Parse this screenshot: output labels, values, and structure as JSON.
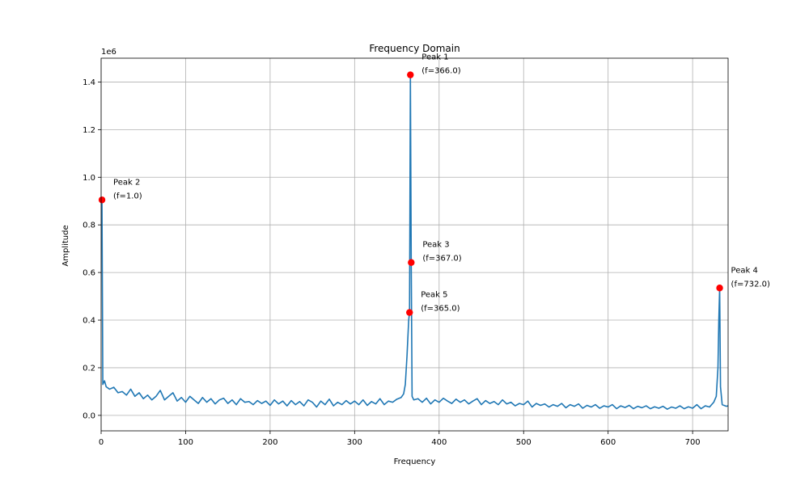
{
  "chart_data": {
    "type": "line",
    "title": "Frequency Domain",
    "xlabel": "Frequency",
    "ylabel": "Amplitude",
    "y_scale_label": "1e6",
    "xlim": [
      0,
      742
    ],
    "ylim": [
      -65000,
      1500000
    ],
    "x_ticks": [
      0,
      100,
      200,
      300,
      400,
      500,
      600,
      700
    ],
    "x_tick_labels": [
      "0",
      "100",
      "200",
      "300",
      "400",
      "500",
      "600",
      "700"
    ],
    "y_ticks": [
      0,
      200000,
      400000,
      600000,
      800000,
      1000000,
      1200000,
      1400000
    ],
    "y_tick_labels": [
      "0.0",
      "0.2",
      "0.4",
      "0.6",
      "0.8",
      "1.0",
      "1.2",
      "1.4"
    ],
    "grid": true,
    "line_color": "#1f77b4",
    "peak_color": "#ff0000",
    "series": [
      {
        "points": [
          [
            0,
            905000
          ],
          [
            1,
            905000
          ],
          [
            2,
            130000
          ],
          [
            4,
            145000
          ],
          [
            6,
            120000
          ],
          [
            10,
            110000
          ],
          [
            15,
            118000
          ],
          [
            20,
            95000
          ],
          [
            25,
            100000
          ],
          [
            30,
            85000
          ],
          [
            35,
            110000
          ],
          [
            40,
            80000
          ],
          [
            45,
            95000
          ],
          [
            50,
            70000
          ],
          [
            55,
            85000
          ],
          [
            60,
            65000
          ],
          [
            65,
            80000
          ],
          [
            70,
            105000
          ],
          [
            75,
            65000
          ],
          [
            80,
            80000
          ],
          [
            85,
            95000
          ],
          [
            90,
            60000
          ],
          [
            95,
            75000
          ],
          [
            100,
            55000
          ],
          [
            105,
            80000
          ],
          [
            110,
            65000
          ],
          [
            115,
            50000
          ],
          [
            120,
            75000
          ],
          [
            125,
            55000
          ],
          [
            130,
            70000
          ],
          [
            135,
            48000
          ],
          [
            140,
            65000
          ],
          [
            145,
            72000
          ],
          [
            150,
            50000
          ],
          [
            155,
            65000
          ],
          [
            160,
            45000
          ],
          [
            165,
            70000
          ],
          [
            170,
            55000
          ],
          [
            175,
            58000
          ],
          [
            180,
            45000
          ],
          [
            185,
            62000
          ],
          [
            190,
            50000
          ],
          [
            195,
            60000
          ],
          [
            200,
            42000
          ],
          [
            205,
            65000
          ],
          [
            210,
            48000
          ],
          [
            215,
            60000
          ],
          [
            220,
            40000
          ],
          [
            225,
            62000
          ],
          [
            230,
            45000
          ],
          [
            235,
            58000
          ],
          [
            240,
            40000
          ],
          [
            245,
            65000
          ],
          [
            250,
            55000
          ],
          [
            255,
            35000
          ],
          [
            260,
            60000
          ],
          [
            265,
            45000
          ],
          [
            270,
            68000
          ],
          [
            275,
            40000
          ],
          [
            280,
            55000
          ],
          [
            285,
            45000
          ],
          [
            290,
            62000
          ],
          [
            295,
            48000
          ],
          [
            300,
            60000
          ],
          [
            305,
            45000
          ],
          [
            310,
            65000
          ],
          [
            315,
            42000
          ],
          [
            320,
            58000
          ],
          [
            325,
            48000
          ],
          [
            330,
            70000
          ],
          [
            335,
            45000
          ],
          [
            340,
            60000
          ],
          [
            345,
            55000
          ],
          [
            350,
            68000
          ],
          [
            355,
            75000
          ],
          [
            358,
            90000
          ],
          [
            360,
            130000
          ],
          [
            362,
            250000
          ],
          [
            364,
            400000
          ],
          [
            365,
            432000
          ],
          [
            366,
            1430000
          ],
          [
            367,
            642000
          ],
          [
            368,
            80000
          ],
          [
            370,
            65000
          ],
          [
            375,
            70000
          ],
          [
            380,
            55000
          ],
          [
            385,
            72000
          ],
          [
            390,
            48000
          ],
          [
            395,
            65000
          ],
          [
            400,
            55000
          ],
          [
            405,
            72000
          ],
          [
            410,
            60000
          ],
          [
            415,
            50000
          ],
          [
            420,
            68000
          ],
          [
            425,
            55000
          ],
          [
            430,
            65000
          ],
          [
            435,
            48000
          ],
          [
            440,
            60000
          ],
          [
            445,
            70000
          ],
          [
            450,
            45000
          ],
          [
            455,
            62000
          ],
          [
            460,
            50000
          ],
          [
            465,
            58000
          ],
          [
            470,
            45000
          ],
          [
            475,
            65000
          ],
          [
            480,
            48000
          ],
          [
            485,
            55000
          ],
          [
            490,
            40000
          ],
          [
            495,
            50000
          ],
          [
            500,
            45000
          ],
          [
            505,
            60000
          ],
          [
            510,
            35000
          ],
          [
            515,
            50000
          ],
          [
            520,
            42000
          ],
          [
            525,
            48000
          ],
          [
            530,
            35000
          ],
          [
            535,
            45000
          ],
          [
            540,
            38000
          ],
          [
            545,
            50000
          ],
          [
            550,
            32000
          ],
          [
            555,
            45000
          ],
          [
            560,
            38000
          ],
          [
            565,
            48000
          ],
          [
            570,
            30000
          ],
          [
            575,
            42000
          ],
          [
            580,
            35000
          ],
          [
            585,
            45000
          ],
          [
            590,
            30000
          ],
          [
            595,
            40000
          ],
          [
            600,
            35000
          ],
          [
            605,
            45000
          ],
          [
            610,
            28000
          ],
          [
            615,
            40000
          ],
          [
            620,
            33000
          ],
          [
            625,
            42000
          ],
          [
            630,
            28000
          ],
          [
            635,
            38000
          ],
          [
            640,
            32000
          ],
          [
            645,
            40000
          ],
          [
            650,
            28000
          ],
          [
            655,
            36000
          ],
          [
            660,
            30000
          ],
          [
            665,
            38000
          ],
          [
            670,
            26000
          ],
          [
            675,
            35000
          ],
          [
            680,
            30000
          ],
          [
            685,
            40000
          ],
          [
            690,
            28000
          ],
          [
            695,
            36000
          ],
          [
            700,
            30000
          ],
          [
            705,
            45000
          ],
          [
            710,
            28000
          ],
          [
            715,
            40000
          ],
          [
            720,
            35000
          ],
          [
            725,
            55000
          ],
          [
            728,
            80000
          ],
          [
            730,
            200000
          ],
          [
            731,
            400000
          ],
          [
            732,
            535000
          ],
          [
            733,
            120000
          ],
          [
            735,
            45000
          ],
          [
            740,
            38000
          ],
          [
            742,
            40000
          ]
        ]
      }
    ],
    "peaks": [
      {
        "x": 366,
        "y": 1430000,
        "label_line1": "Peak 1",
        "label_line2": "(f=366.0)"
      },
      {
        "x": 1,
        "y": 905000,
        "label_line1": "Peak 2",
        "label_line2": "(f=1.0)"
      },
      {
        "x": 367,
        "y": 642000,
        "label_line1": "Peak 3",
        "label_line2": "(f=367.0)"
      },
      {
        "x": 732,
        "y": 535000,
        "label_line1": "Peak 4",
        "label_line2": "(f=732.0)"
      },
      {
        "x": 365,
        "y": 432000,
        "label_line1": "Peak 5",
        "label_line2": "(f=365.0)"
      }
    ]
  }
}
